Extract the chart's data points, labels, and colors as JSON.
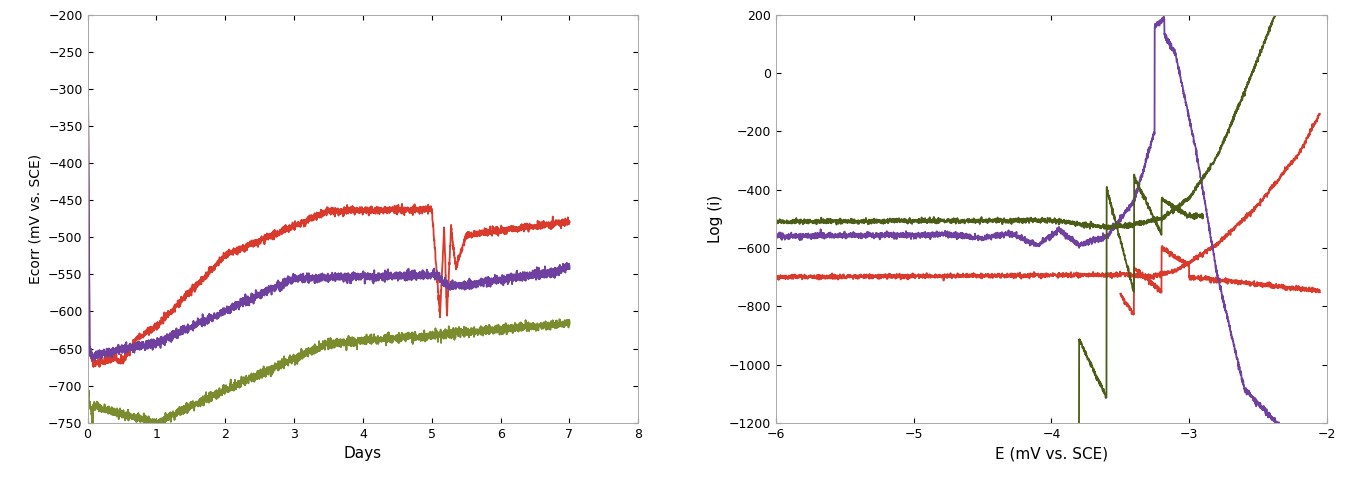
{
  "left_plot": {
    "xlabel": "Days",
    "ylabel": "Ecorr (mV vs. SCE)",
    "xlim": [
      0,
      8
    ],
    "ylim": [
      -750,
      -200
    ],
    "yticks": [
      -750,
      -700,
      -650,
      -600,
      -550,
      -500,
      -450,
      -400,
      -350,
      -300,
      -250,
      -200
    ],
    "xticks": [
      0,
      1,
      2,
      3,
      4,
      5,
      6,
      7,
      8
    ],
    "colors": {
      "red": "#d93a2b",
      "purple": "#7040a0",
      "olive": "#7a8c2e"
    }
  },
  "right_plot": {
    "xlabel": "E (mV vs. SCE)",
    "ylabel": "Log (i)",
    "xlim": [
      -6,
      -2
    ],
    "ylim": [
      -1200,
      200
    ],
    "yticks": [
      -1200,
      -1000,
      -800,
      -600,
      -400,
      -200,
      0,
      200
    ],
    "xticks": [
      -6,
      -5,
      -4,
      -3,
      -2
    ],
    "colors": {
      "red": "#d93a2b",
      "purple": "#7040a0",
      "olive": "#4a5c15"
    }
  },
  "background_color": "#ffffff",
  "line_width": 1.3
}
